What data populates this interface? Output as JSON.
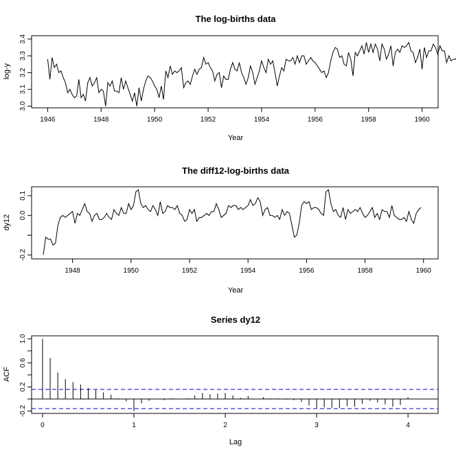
{
  "chart_data": [
    {
      "type": "line",
      "title": "The log-births data",
      "xlabel": "Year",
      "ylabel": "log-y",
      "xlim": [
        1945.4,
        1960.6
      ],
      "ylim": [
        2.99,
        3.42
      ],
      "xticks": [
        1946,
        1948,
        1950,
        1952,
        1954,
        1956,
        1958,
        1960
      ],
      "yticks": [
        3.0,
        3.1,
        3.2,
        3.3,
        3.4
      ],
      "ytick_labels": [
        "3.0",
        "3.1",
        "3.2",
        "3.3",
        "3.4"
      ],
      "x_start": 1946.0,
      "x_step": 0.0833333,
      "values": [
        3.28,
        3.16,
        3.29,
        3.23,
        3.25,
        3.2,
        3.21,
        3.17,
        3.14,
        3.08,
        3.1,
        3.07,
        3.05,
        3.06,
        3.16,
        3.05,
        3.07,
        3.03,
        3.14,
        3.17,
        3.12,
        3.14,
        3.17,
        3.08,
        3.1,
        3.09,
        3.0,
        3.14,
        3.12,
        3.15,
        3.09,
        3.09,
        3.08,
        3.17,
        3.1,
        3.15,
        3.11,
        3.07,
        3.03,
        3.08,
        3.0,
        3.11,
        3.03,
        3.1,
        3.15,
        3.18,
        3.17,
        3.15,
        3.12,
        3.1,
        3.05,
        3.12,
        3.04,
        3.21,
        3.17,
        3.24,
        3.19,
        3.21,
        3.2,
        3.21,
        3.23,
        3.11,
        3.14,
        3.15,
        3.13,
        3.18,
        3.22,
        3.19,
        3.22,
        3.23,
        3.29,
        3.25,
        3.26,
        3.23,
        3.21,
        3.15,
        3.19,
        3.2,
        3.11,
        3.18,
        3.16,
        3.16,
        3.22,
        3.26,
        3.22,
        3.21,
        3.26,
        3.2,
        3.17,
        3.13,
        3.17,
        3.24,
        3.2,
        3.13,
        3.17,
        3.21,
        3.27,
        3.23,
        3.2,
        3.28,
        3.25,
        3.27,
        3.2,
        3.12,
        3.18,
        3.23,
        3.21,
        3.28,
        3.27,
        3.27,
        3.29,
        3.25,
        3.3,
        3.26,
        3.3,
        3.3,
        3.25,
        3.27,
        3.29,
        3.27,
        3.26,
        3.24,
        3.22,
        3.2,
        3.21,
        3.17,
        3.2,
        3.27,
        3.32,
        3.35,
        3.34,
        3.29,
        3.3,
        3.25,
        3.24,
        3.32,
        3.28,
        3.18,
        3.32,
        3.3,
        3.33,
        3.36,
        3.31,
        3.38,
        3.32,
        3.37,
        3.32,
        3.37,
        3.34,
        3.27,
        3.37,
        3.34,
        3.28,
        3.31,
        3.36,
        3.24,
        3.32,
        3.34,
        3.32,
        3.36,
        3.35,
        3.36,
        3.38,
        3.33,
        3.32,
        3.26,
        3.29,
        3.34,
        3.22,
        3.35,
        3.29,
        3.33,
        3.33,
        3.37,
        3.35,
        3.31,
        3.36,
        3.33,
        3.33,
        3.26,
        3.3,
        3.27,
        3.28,
        3.28,
        3.3,
        3.35,
        3.26,
        3.3,
        3.25,
        3.27,
        3.31,
        3.24,
        3.38,
        3.41,
        3.38,
        3.38,
        3.36,
        3.3,
        3.33
      ]
    },
    {
      "type": "line",
      "title": "The diff12-log-births data",
      "xlabel": "Year",
      "ylabel": "dy12",
      "xlim": [
        1946.6,
        1960.5
      ],
      "ylim": [
        -0.22,
        0.145
      ],
      "xticks": [
        1948,
        1950,
        1952,
        1954,
        1956,
        1958,
        1960
      ],
      "yticks": [
        -0.2,
        -0.1,
        0.0,
        0.1
      ],
      "ytick_labels": [
        "-0.2",
        "",
        "0.0",
        "0.1"
      ],
      "x_start": 1947.0,
      "x_step": 0.0833333,
      "values": [
        -0.2,
        -0.11,
        -0.12,
        -0.12,
        -0.15,
        -0.14,
        -0.05,
        -0.01,
        0.0,
        -0.01,
        0.0,
        0.01,
        0.02,
        -0.04,
        0.01,
        0.0,
        0.03,
        0.06,
        0.02,
        0.01,
        -0.03,
        0.0,
        0.01,
        -0.02,
        -0.02,
        -0.01,
        0.01,
        -0.01,
        -0.02,
        0.03,
        0.01,
        0.0,
        0.04,
        0.01,
        0.01,
        0.06,
        0.03,
        0.05,
        0.12,
        0.13,
        0.06,
        0.04,
        0.05,
        0.03,
        0.02,
        0.05,
        0.03,
        0.0,
        0.07,
        0.01,
        0.02,
        0.05,
        0.04,
        0.04,
        0.03,
        0.05,
        0.01,
        0.0,
        -0.03,
        -0.02,
        0.03,
        0.01,
        0.03,
        -0.03,
        -0.01,
        -0.01,
        0.0,
        0.01,
        0.0,
        0.02,
        0.02,
        0.06,
        0.03,
        -0.01,
        0.0,
        0.01,
        0.05,
        0.04,
        0.05,
        0.05,
        0.03,
        0.04,
        0.03,
        0.04,
        0.05,
        0.08,
        0.05,
        0.06,
        0.09,
        0.07,
        0.0,
        0.03,
        0.04,
        0.0,
        0.0,
        -0.01,
        0.0,
        -0.02,
        0.03,
        0.0,
        0.02,
        0.01,
        -0.05,
        -0.11,
        -0.1,
        -0.04,
        0.05,
        0.07,
        0.06,
        0.07,
        0.03,
        0.04,
        0.04,
        0.03,
        0.01,
        0.0,
        0.12,
        0.13,
        0.06,
        0.02,
        0.03,
        0.0,
        -0.01,
        0.04,
        -0.02,
        0.03,
        0.01,
        0.02,
        0.03,
        0.02,
        0.04,
        0.01,
        -0.01,
        0.0,
        0.02,
        0.04,
        -0.01,
        0.01,
        -0.02,
        0.03,
        0.02,
        0.02,
        -0.01,
        0.05,
        0.0,
        -0.01,
        -0.02,
        -0.02,
        -0.01,
        -0.03,
        0.02,
        -0.02,
        -0.04,
        0.01,
        0.03,
        0.04
      ]
    },
    {
      "type": "bar",
      "title": "Series  dy12",
      "xlabel": "Lag",
      "ylabel": "ACF",
      "xlim": [
        -0.12,
        4.33
      ],
      "ylim": [
        -0.24,
        1.05
      ],
      "xticks": [
        0,
        1,
        2,
        3,
        4
      ],
      "yticks": [
        -0.2,
        0.2,
        0.6,
        1.0
      ],
      "yticks_minor": [
        0.0,
        0.4,
        0.8
      ],
      "ytick_labels": [
        "-0.2",
        "0.2",
        "0.6",
        "1.0"
      ],
      "confidence_band": 0.16,
      "x_start": 0.0,
      "x_step": 0.0833333,
      "values": [
        1.0,
        0.68,
        0.44,
        0.33,
        0.28,
        0.24,
        0.18,
        0.15,
        0.11,
        0.07,
        0.01,
        -0.04,
        -0.2,
        -0.07,
        -0.03,
        0.0,
        -0.02,
        0.01,
        0.0,
        0.01,
        0.06,
        0.1,
        0.08,
        0.09,
        0.1,
        0.06,
        0.02,
        0.05,
        0.0,
        0.03,
        0.01,
        0.01,
        -0.01,
        -0.02,
        -0.05,
        -0.11,
        -0.15,
        -0.14,
        -0.15,
        -0.15,
        -0.12,
        -0.13,
        -0.08,
        -0.03,
        -0.06,
        -0.09,
        -0.13,
        -0.1,
        0.03
      ]
    }
  ]
}
